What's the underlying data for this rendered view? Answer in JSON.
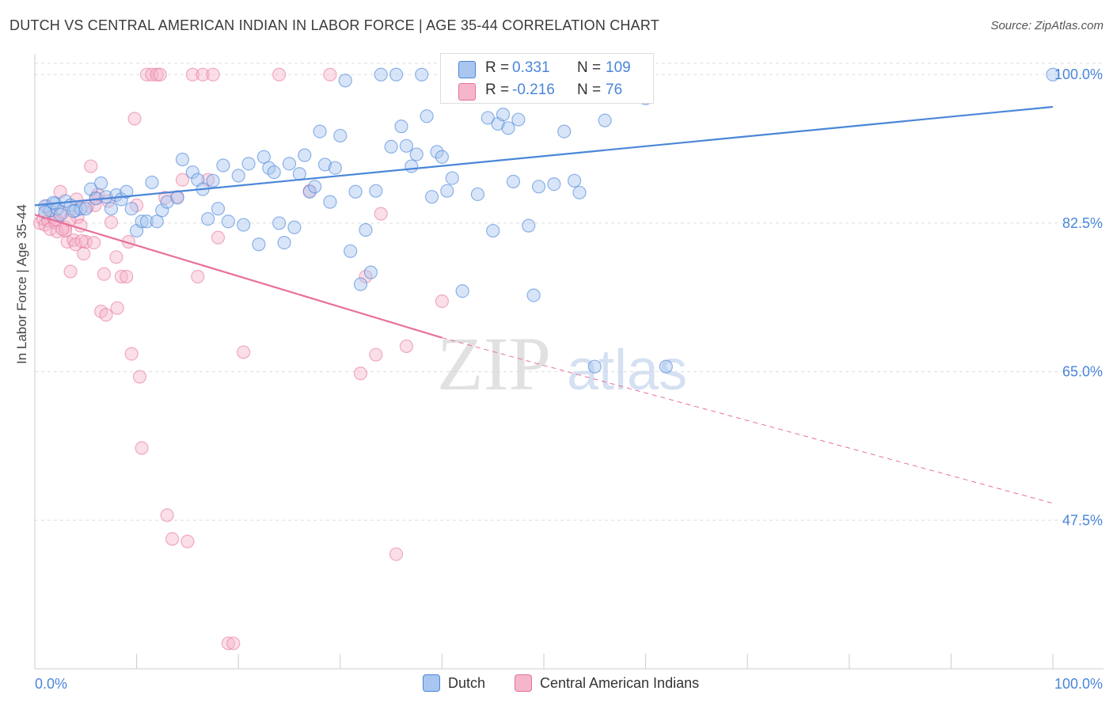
{
  "title": "DUTCH VS CENTRAL AMERICAN INDIAN IN LABOR FORCE | AGE 35-44 CORRELATION CHART",
  "source": "Source: ZipAtlas.com",
  "watermark": "ZIPatlas",
  "legend_stats": {
    "r_label": "R =",
    "n_label": "N =",
    "dutch": {
      "r": "0.331",
      "n": "109",
      "color": "#4a86d8"
    },
    "cai": {
      "r": "-0.216",
      "n": "76",
      "color": "#e8709a"
    }
  },
  "legend_bottom": {
    "dutch": "Dutch",
    "cai": "Central American Indians"
  },
  "chart_data": {
    "type": "scatter",
    "title": "DUTCH VS CENTRAL AMERICAN INDIAN IN LABOR FORCE | AGE 35-44 CORRELATION CHART",
    "xlabel": "",
    "ylabel": "In Labor Force | Age 35-44",
    "xlim": [
      0,
      100
    ],
    "ylim": [
      30,
      101.7
    ],
    "x_tick_labels": [
      "0.0%",
      "100.0%"
    ],
    "y_tick_labels": [
      "100.0%",
      "82.5%",
      "65.0%",
      "47.5%"
    ],
    "y_ticks": [
      100,
      82.5,
      65,
      47.5
    ],
    "grid": true,
    "series": [
      {
        "name": "Dutch",
        "color": "#4a86d8",
        "fill": "#a8c6f0",
        "trend": {
          "x": [
            0,
            100
          ],
          "y": [
            84.6,
            96.2
          ]
        },
        "points": [
          [
            1,
            84.5
          ],
          [
            1.5,
            84
          ],
          [
            2,
            84.8
          ],
          [
            2.2,
            84.2
          ],
          [
            3,
            85.1
          ],
          [
            3.5,
            84.6
          ],
          [
            4,
            84
          ],
          [
            4.5,
            84.2
          ],
          [
            5,
            84.2
          ],
          [
            5.5,
            86.5
          ],
          [
            6,
            85.4
          ],
          [
            6.5,
            87.2
          ],
          [
            7,
            85.6
          ],
          [
            7.5,
            84.2
          ],
          [
            8,
            85.8
          ],
          [
            8.5,
            85.3
          ],
          [
            9,
            86.2
          ],
          [
            9.5,
            84.2
          ],
          [
            10,
            81.6
          ],
          [
            10.5,
            82.7
          ],
          [
            11,
            82.7
          ],
          [
            11.5,
            87.3
          ],
          [
            12,
            82.7
          ],
          [
            12.5,
            84
          ],
          [
            13,
            85
          ],
          [
            14,
            85.5
          ],
          [
            14.5,
            90
          ],
          [
            15.5,
            88.5
          ],
          [
            16,
            87.6
          ],
          [
            16.5,
            86.5
          ],
          [
            17,
            83
          ],
          [
            17.5,
            87.5
          ],
          [
            18,
            84.2
          ],
          [
            18.5,
            89.3
          ],
          [
            19,
            82.7
          ],
          [
            20,
            88.1
          ],
          [
            20.5,
            82.3
          ],
          [
            21,
            89.5
          ],
          [
            22,
            80
          ],
          [
            22.5,
            90.3
          ],
          [
            23,
            89
          ],
          [
            23.5,
            88.5
          ],
          [
            24,
            82.5
          ],
          [
            24.5,
            80.2
          ],
          [
            25,
            89.5
          ],
          [
            25.5,
            82
          ],
          [
            26,
            88.3
          ],
          [
            26.5,
            90.5
          ],
          [
            27,
            86.2
          ],
          [
            27.5,
            86.8
          ],
          [
            28,
            93.3
          ],
          [
            28.5,
            89.4
          ],
          [
            29,
            85
          ],
          [
            29.5,
            89
          ],
          [
            30,
            92.8
          ],
          [
            30.5,
            99.3
          ],
          [
            31,
            79.2
          ],
          [
            31.5,
            86.2
          ],
          [
            32,
            75.3
          ],
          [
            32.5,
            81.7
          ],
          [
            33,
            76.7
          ],
          [
            33.5,
            86.3
          ],
          [
            34,
            100
          ],
          [
            35,
            91.5
          ],
          [
            35.5,
            100
          ],
          [
            36,
            93.9
          ],
          [
            36.5,
            91.6
          ],
          [
            37,
            89.2
          ],
          [
            37.5,
            90.6
          ],
          [
            38,
            100
          ],
          [
            38.5,
            95.1
          ],
          [
            39,
            85.6
          ],
          [
            39.5,
            90.9
          ],
          [
            40,
            90.3
          ],
          [
            40.5,
            86.3
          ],
          [
            41,
            87.8
          ],
          [
            42,
            74.5
          ],
          [
            43,
            100
          ],
          [
            43.5,
            85.9
          ],
          [
            44.5,
            94.9
          ],
          [
            45,
            81.6
          ],
          [
            45.5,
            94.2
          ],
          [
            46,
            95.3
          ],
          [
            46.5,
            93.7
          ],
          [
            47,
            87.4
          ],
          [
            47.5,
            94.7
          ],
          [
            48,
            100
          ],
          [
            48.5,
            82.2
          ],
          [
            49,
            74
          ],
          [
            49.5,
            86.8
          ],
          [
            50,
            100
          ],
          [
            51,
            87.1
          ],
          [
            52,
            93.3
          ],
          [
            53,
            87.5
          ],
          [
            53.5,
            86.1
          ],
          [
            54,
            100
          ],
          [
            55,
            65.6
          ],
          [
            56,
            94.6
          ],
          [
            58,
            100
          ],
          [
            60,
            97.2
          ],
          [
            62,
            65.6
          ],
          [
            100,
            100
          ],
          [
            1,
            83.8
          ],
          [
            2.5,
            83.5
          ],
          [
            1.8,
            84.9
          ],
          [
            3.8,
            83.9
          ]
        ]
      },
      {
        "name": "Central American Indians",
        "color": "#e8709a",
        "fill": "#f5b6cb",
        "trend": {
          "x": [
            0,
            40
          ],
          "y": [
            83.5,
            69.0
          ]
        },
        "trend_dashed": {
          "x": [
            40,
            100
          ],
          "y": [
            69.0,
            49.5
          ]
        },
        "points": [
          [
            0.5,
            82.5
          ],
          [
            0.8,
            83
          ],
          [
            1,
            82.3
          ],
          [
            1.3,
            82.8
          ],
          [
            1.5,
            81.8
          ],
          [
            1.8,
            83.2
          ],
          [
            2,
            82.6
          ],
          [
            2.2,
            81.5
          ],
          [
            2.5,
            86.2
          ],
          [
            2.8,
            83.8
          ],
          [
            3,
            82
          ],
          [
            3.2,
            80.3
          ],
          [
            3.5,
            76.8
          ],
          [
            3.8,
            80.5
          ],
          [
            4,
            80
          ],
          [
            4.2,
            83.2
          ],
          [
            4.5,
            82.2
          ],
          [
            4.8,
            78.9
          ],
          [
            5,
            80.3
          ],
          [
            5.2,
            84.5
          ],
          [
            5.5,
            89.2
          ],
          [
            5.8,
            80.2
          ],
          [
            6,
            85.5
          ],
          [
            6.5,
            72.1
          ],
          [
            7,
            71.7
          ],
          [
            7.5,
            82.6
          ],
          [
            8,
            78.5
          ],
          [
            8.5,
            76.2
          ],
          [
            9,
            76.2
          ],
          [
            9.5,
            67.1
          ],
          [
            9.8,
            94.8
          ],
          [
            10,
            84.6
          ],
          [
            10.3,
            64.4
          ],
          [
            10.5,
            56
          ],
          [
            11,
            100
          ],
          [
            11.5,
            100
          ],
          [
            12,
            100
          ],
          [
            12.3,
            100
          ],
          [
            13,
            48.1
          ],
          [
            13.5,
            45.3
          ],
          [
            14,
            85.6
          ],
          [
            14.5,
            87.6
          ],
          [
            15,
            45
          ],
          [
            15.5,
            100
          ],
          [
            16,
            76.2
          ],
          [
            16.5,
            100
          ],
          [
            17,
            87.6
          ],
          [
            17.5,
            100
          ],
          [
            18,
            80.8
          ],
          [
            19,
            33
          ],
          [
            19.5,
            33
          ],
          [
            20.5,
            67.3
          ],
          [
            24,
            100
          ],
          [
            27,
            86.3
          ],
          [
            29,
            100
          ],
          [
            32,
            64.8
          ],
          [
            32.5,
            76.2
          ],
          [
            33.5,
            67
          ],
          [
            34,
            83.6
          ],
          [
            35.5,
            43.5
          ],
          [
            36.5,
            68
          ],
          [
            40,
            73.3
          ],
          [
            3,
            81.6
          ],
          [
            4.6,
            80.4
          ],
          [
            1.2,
            84.5
          ],
          [
            2.1,
            82.9
          ],
          [
            6.8,
            76.5
          ],
          [
            5.9,
            84.6
          ],
          [
            9.2,
            80.3
          ],
          [
            8.1,
            72.5
          ],
          [
            7.2,
            85.1
          ],
          [
            3.4,
            82.9
          ],
          [
            2.7,
            81.8
          ],
          [
            12.8,
            85.5
          ],
          [
            6.2,
            85.9
          ],
          [
            4.1,
            85.3
          ]
        ]
      }
    ]
  }
}
